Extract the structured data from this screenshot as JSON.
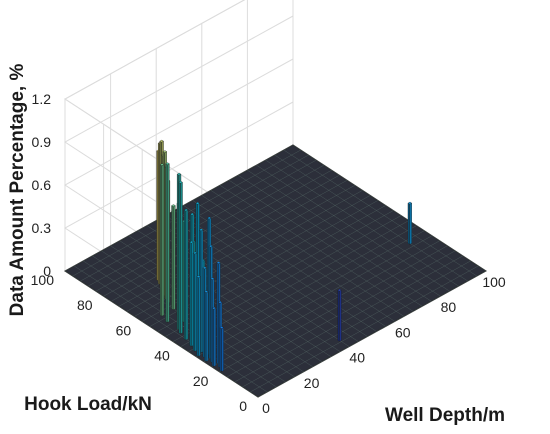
{
  "chart_data": {
    "type": "bar3d",
    "xlabel": "Well Depth/m",
    "ylabel": "Hook Load/kN",
    "zlabel": "Data Amount Percentage, %",
    "xlim": [
      0,
      100
    ],
    "ylim": [
      0,
      100
    ],
    "zlim": [
      0,
      1.2
    ],
    "xticks": [
      "0",
      "20",
      "40",
      "60",
      "80",
      "100"
    ],
    "yticks": [
      "0",
      "20",
      "40",
      "60",
      "80",
      "100"
    ],
    "zticks": [
      "0",
      "0.3",
      "0.6",
      "0.9",
      "1.2"
    ],
    "grid": true,
    "colormap": "parula",
    "colors": {
      "surface": "#2c2f3a",
      "mesh": "#5a6f6a",
      "parula": [
        "#352a87",
        "#0f5cdd",
        "#1481d6",
        "#06a4ca",
        "#2eb7a4",
        "#87bf77",
        "#d1bb59",
        "#fec832",
        "#f9fb0e"
      ]
    },
    "bars": [
      {
        "x": 1,
        "y": 20,
        "z": 0.3
      },
      {
        "x": 1,
        "y": 24,
        "z": 0.4
      },
      {
        "x": 1,
        "y": 28,
        "z": 0.48
      },
      {
        "x": 1,
        "y": 32,
        "z": 0.55
      },
      {
        "x": 2,
        "y": 22,
        "z": 0.45
      },
      {
        "x": 2,
        "y": 26,
        "z": 0.58
      },
      {
        "x": 2,
        "y": 30,
        "z": 0.62
      },
      {
        "x": 2,
        "y": 35,
        "z": 0.68
      },
      {
        "x": 3,
        "y": 24,
        "z": 0.7
      },
      {
        "x": 3,
        "y": 28,
        "z": 0.78
      },
      {
        "x": 3,
        "y": 33,
        "z": 0.85
      },
      {
        "x": 3,
        "y": 38,
        "z": 0.72
      },
      {
        "x": 4,
        "y": 30,
        "z": 0.95
      },
      {
        "x": 4,
        "y": 36,
        "z": 1.0
      },
      {
        "x": 4,
        "y": 42,
        "z": 0.9
      },
      {
        "x": 5,
        "y": 40,
        "z": 0.88
      },
      {
        "x": 5,
        "y": 46,
        "z": 1.05
      },
      {
        "x": 6,
        "y": 48,
        "z": 1.08
      },
      {
        "x": 6,
        "y": 54,
        "z": 1.1
      },
      {
        "x": 7,
        "y": 58,
        "z": 1.05
      },
      {
        "x": 8,
        "y": 38,
        "z": 0.55
      },
      {
        "x": 9,
        "y": 44,
        "z": 0.62
      },
      {
        "x": 10,
        "y": 50,
        "z": 0.7
      },
      {
        "x": 11,
        "y": 54,
        "z": 0.78
      },
      {
        "x": 12,
        "y": 58,
        "z": 0.72
      },
      {
        "x": 13,
        "y": 62,
        "z": 0.85
      },
      {
        "x": 14,
        "y": 64,
        "z": 0.92
      },
      {
        "x": 15,
        "y": 66,
        "z": 1.0
      },
      {
        "x": 16,
        "y": 68,
        "z": 0.95
      },
      {
        "x": 17,
        "y": 70,
        "z": 1.02
      },
      {
        "x": 18,
        "y": 72,
        "z": 0.98
      },
      {
        "x": 19,
        "y": 74,
        "z": 0.9
      },
      {
        "x": 40,
        "y": 5,
        "z": 0.35
      },
      {
        "x": 92,
        "y": 30,
        "z": 0.28
      }
    ]
  }
}
